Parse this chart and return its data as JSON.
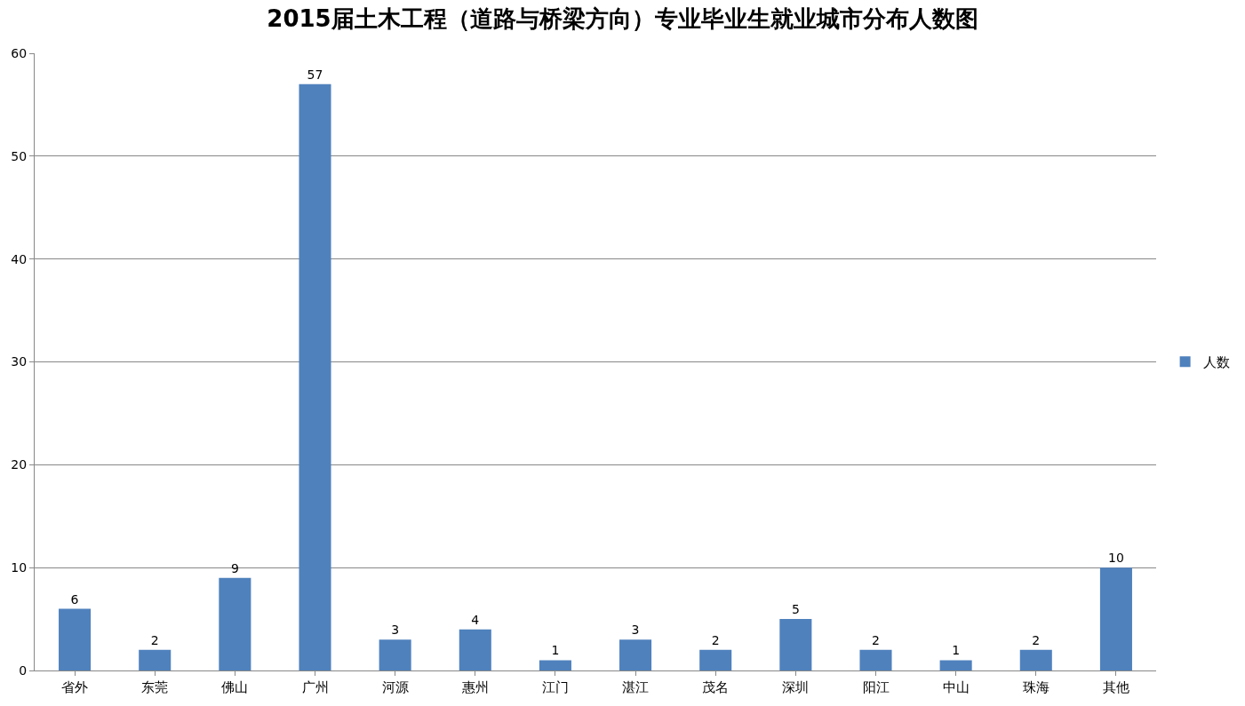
{
  "chart_data": {
    "type": "bar",
    "title": "2015届土木工程（道路与桥梁方向）专业毕业生就业城市分布人数图",
    "categories": [
      "省外",
      "东莞",
      "佛山",
      "广州",
      "河源",
      "惠州",
      "江门",
      "湛江",
      "茂名",
      "深圳",
      "阳江",
      "中山",
      "珠海",
      "其他"
    ],
    "series": [
      {
        "name": "人数",
        "color": "#4f81bd",
        "values": [
          6,
          2,
          9,
          57,
          3,
          4,
          1,
          3,
          2,
          5,
          2,
          1,
          2,
          10
        ]
      }
    ],
    "ylim": [
      0,
      60
    ],
    "yticks": [
      0,
      10,
      20,
      30,
      40,
      50,
      60
    ],
    "grid": "y",
    "legend": "right",
    "data_labels": true
  }
}
